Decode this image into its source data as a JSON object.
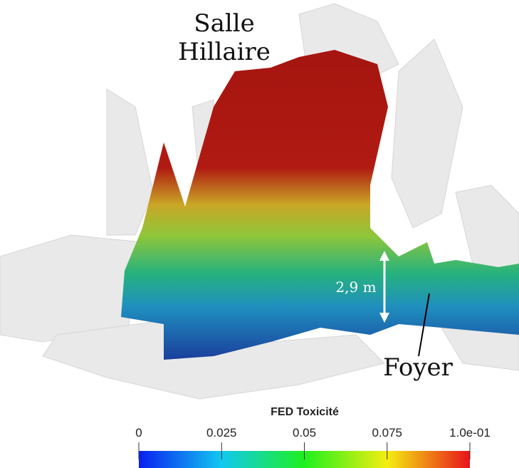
{
  "annotations": {
    "room_label": [
      "Salle",
      "Hillaire"
    ],
    "height_label": "2,9 m",
    "fire_label": "Foyer"
  },
  "colorbar": {
    "title": "FED Toxicité",
    "range": [
      0,
      0.1
    ],
    "ticks": [
      0,
      0.025,
      0.05,
      0.075,
      {
        "value": 0.1,
        "label": "1.0e-01"
      }
    ]
  }
}
